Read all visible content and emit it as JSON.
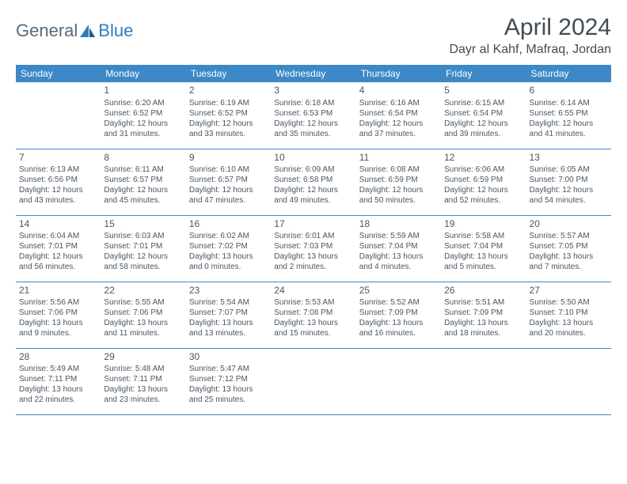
{
  "logo": {
    "grey": "General",
    "blue": "Blue"
  },
  "title": "April 2024",
  "location": "Dayr al Kahf, Mafraq, Jordan",
  "colors": {
    "header_bg": "#3d88c6",
    "header_fg": "#ffffff",
    "text": "#4b5660",
    "logo_grey": "#5a6a78",
    "logo_blue": "#2f7dc0",
    "border": "#3d88c6"
  },
  "weekdays": [
    "Sunday",
    "Monday",
    "Tuesday",
    "Wednesday",
    "Thursday",
    "Friday",
    "Saturday"
  ],
  "weeks": [
    [
      null,
      {
        "d": "1",
        "sr": "Sunrise: 6:20 AM",
        "ss": "Sunset: 6:52 PM",
        "dl1": "Daylight: 12 hours",
        "dl2": "and 31 minutes."
      },
      {
        "d": "2",
        "sr": "Sunrise: 6:19 AM",
        "ss": "Sunset: 6:52 PM",
        "dl1": "Daylight: 12 hours",
        "dl2": "and 33 minutes."
      },
      {
        "d": "3",
        "sr": "Sunrise: 6:18 AM",
        "ss": "Sunset: 6:53 PM",
        "dl1": "Daylight: 12 hours",
        "dl2": "and 35 minutes."
      },
      {
        "d": "4",
        "sr": "Sunrise: 6:16 AM",
        "ss": "Sunset: 6:54 PM",
        "dl1": "Daylight: 12 hours",
        "dl2": "and 37 minutes."
      },
      {
        "d": "5",
        "sr": "Sunrise: 6:15 AM",
        "ss": "Sunset: 6:54 PM",
        "dl1": "Daylight: 12 hours",
        "dl2": "and 39 minutes."
      },
      {
        "d": "6",
        "sr": "Sunrise: 6:14 AM",
        "ss": "Sunset: 6:55 PM",
        "dl1": "Daylight: 12 hours",
        "dl2": "and 41 minutes."
      }
    ],
    [
      {
        "d": "7",
        "sr": "Sunrise: 6:13 AM",
        "ss": "Sunset: 6:56 PM",
        "dl1": "Daylight: 12 hours",
        "dl2": "and 43 minutes."
      },
      {
        "d": "8",
        "sr": "Sunrise: 6:11 AM",
        "ss": "Sunset: 6:57 PM",
        "dl1": "Daylight: 12 hours",
        "dl2": "and 45 minutes."
      },
      {
        "d": "9",
        "sr": "Sunrise: 6:10 AM",
        "ss": "Sunset: 6:57 PM",
        "dl1": "Daylight: 12 hours",
        "dl2": "and 47 minutes."
      },
      {
        "d": "10",
        "sr": "Sunrise: 6:09 AM",
        "ss": "Sunset: 6:58 PM",
        "dl1": "Daylight: 12 hours",
        "dl2": "and 49 minutes."
      },
      {
        "d": "11",
        "sr": "Sunrise: 6:08 AM",
        "ss": "Sunset: 6:59 PM",
        "dl1": "Daylight: 12 hours",
        "dl2": "and 50 minutes."
      },
      {
        "d": "12",
        "sr": "Sunrise: 6:06 AM",
        "ss": "Sunset: 6:59 PM",
        "dl1": "Daylight: 12 hours",
        "dl2": "and 52 minutes."
      },
      {
        "d": "13",
        "sr": "Sunrise: 6:05 AM",
        "ss": "Sunset: 7:00 PM",
        "dl1": "Daylight: 12 hours",
        "dl2": "and 54 minutes."
      }
    ],
    [
      {
        "d": "14",
        "sr": "Sunrise: 6:04 AM",
        "ss": "Sunset: 7:01 PM",
        "dl1": "Daylight: 12 hours",
        "dl2": "and 56 minutes."
      },
      {
        "d": "15",
        "sr": "Sunrise: 6:03 AM",
        "ss": "Sunset: 7:01 PM",
        "dl1": "Daylight: 12 hours",
        "dl2": "and 58 minutes."
      },
      {
        "d": "16",
        "sr": "Sunrise: 6:02 AM",
        "ss": "Sunset: 7:02 PM",
        "dl1": "Daylight: 13 hours",
        "dl2": "and 0 minutes."
      },
      {
        "d": "17",
        "sr": "Sunrise: 6:01 AM",
        "ss": "Sunset: 7:03 PM",
        "dl1": "Daylight: 13 hours",
        "dl2": "and 2 minutes."
      },
      {
        "d": "18",
        "sr": "Sunrise: 5:59 AM",
        "ss": "Sunset: 7:04 PM",
        "dl1": "Daylight: 13 hours",
        "dl2": "and 4 minutes."
      },
      {
        "d": "19",
        "sr": "Sunrise: 5:58 AM",
        "ss": "Sunset: 7:04 PM",
        "dl1": "Daylight: 13 hours",
        "dl2": "and 5 minutes."
      },
      {
        "d": "20",
        "sr": "Sunrise: 5:57 AM",
        "ss": "Sunset: 7:05 PM",
        "dl1": "Daylight: 13 hours",
        "dl2": "and 7 minutes."
      }
    ],
    [
      {
        "d": "21",
        "sr": "Sunrise: 5:56 AM",
        "ss": "Sunset: 7:06 PM",
        "dl1": "Daylight: 13 hours",
        "dl2": "and 9 minutes."
      },
      {
        "d": "22",
        "sr": "Sunrise: 5:55 AM",
        "ss": "Sunset: 7:06 PM",
        "dl1": "Daylight: 13 hours",
        "dl2": "and 11 minutes."
      },
      {
        "d": "23",
        "sr": "Sunrise: 5:54 AM",
        "ss": "Sunset: 7:07 PM",
        "dl1": "Daylight: 13 hours",
        "dl2": "and 13 minutes."
      },
      {
        "d": "24",
        "sr": "Sunrise: 5:53 AM",
        "ss": "Sunset: 7:08 PM",
        "dl1": "Daylight: 13 hours",
        "dl2": "and 15 minutes."
      },
      {
        "d": "25",
        "sr": "Sunrise: 5:52 AM",
        "ss": "Sunset: 7:09 PM",
        "dl1": "Daylight: 13 hours",
        "dl2": "and 16 minutes."
      },
      {
        "d": "26",
        "sr": "Sunrise: 5:51 AM",
        "ss": "Sunset: 7:09 PM",
        "dl1": "Daylight: 13 hours",
        "dl2": "and 18 minutes."
      },
      {
        "d": "27",
        "sr": "Sunrise: 5:50 AM",
        "ss": "Sunset: 7:10 PM",
        "dl1": "Daylight: 13 hours",
        "dl2": "and 20 minutes."
      }
    ],
    [
      {
        "d": "28",
        "sr": "Sunrise: 5:49 AM",
        "ss": "Sunset: 7:11 PM",
        "dl1": "Daylight: 13 hours",
        "dl2": "and 22 minutes."
      },
      {
        "d": "29",
        "sr": "Sunrise: 5:48 AM",
        "ss": "Sunset: 7:11 PM",
        "dl1": "Daylight: 13 hours",
        "dl2": "and 23 minutes."
      },
      {
        "d": "30",
        "sr": "Sunrise: 5:47 AM",
        "ss": "Sunset: 7:12 PM",
        "dl1": "Daylight: 13 hours",
        "dl2": "and 25 minutes."
      },
      null,
      null,
      null,
      null
    ]
  ]
}
